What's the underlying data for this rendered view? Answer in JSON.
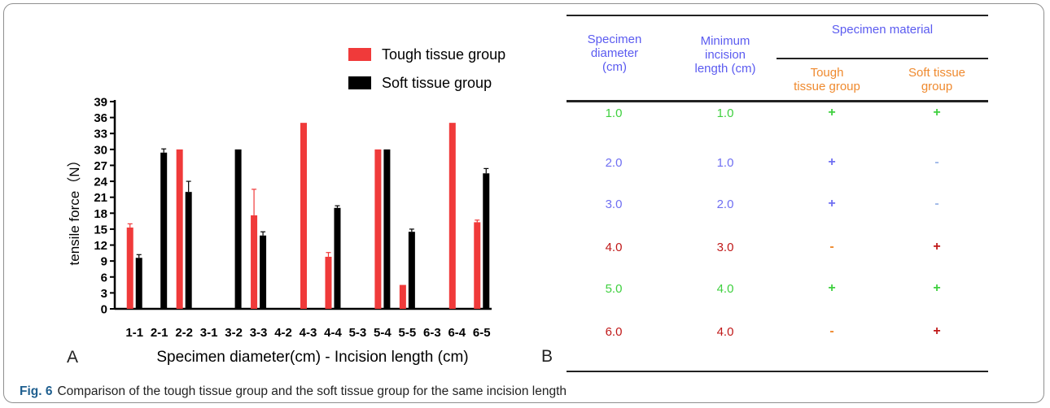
{
  "chart_data": {
    "type": "bar",
    "panel_label": "A",
    "xlabel": "Specimen diameter(cm) - Incision length (cm)",
    "ylabel": "tensile force（N）",
    "ylim": [
      0,
      39
    ],
    "yticks": [
      "0",
      "3",
      "6",
      "9",
      "12",
      "15",
      "18",
      "21",
      "24",
      "27",
      "30",
      "33",
      "36",
      "39"
    ],
    "categories": [
      "1-1",
      "2-1",
      "2-2",
      "3-1",
      "3-2",
      "3-3",
      "4-2",
      "4-3",
      "4-4",
      "5-3",
      "5-4",
      "5-5",
      "6-3",
      "6-4",
      "6-5"
    ],
    "series": [
      {
        "name": "Tough tissue group",
        "color": "#f03a3a",
        "values": [
          15.3,
          0,
          30,
          0,
          0,
          17.6,
          0,
          35,
          9.8,
          0,
          30,
          4.5,
          0,
          35,
          16.3
        ],
        "errors": [
          0.7,
          0,
          0,
          0,
          0,
          4.9,
          0,
          0,
          0.8,
          0,
          0,
          0,
          0,
          0,
          0.4
        ]
      },
      {
        "name": "Soft tissue group",
        "color": "#000000",
        "values": [
          9.6,
          29.4,
          22,
          0,
          30,
          13.8,
          0,
          0,
          19,
          0,
          30,
          14.5,
          0,
          0,
          25.5
        ],
        "errors": [
          0.6,
          0.7,
          2,
          0,
          0,
          0.7,
          0,
          0,
          0.4,
          0,
          0,
          0.5,
          0,
          0,
          0.9
        ]
      }
    ],
    "legend": "top-right"
  },
  "table": {
    "panel_label": "B",
    "headers": {
      "diameter": [
        "Specimen",
        "diameter",
        "(cm)"
      ],
      "incision": [
        "Minimum",
        "incision",
        "length  (cm)"
      ],
      "material": "Specimen material",
      "tough": [
        "Tough",
        "tissue group"
      ],
      "soft": [
        "Soft tissue",
        "group"
      ]
    },
    "rows": [
      {
        "diameter": "1.0",
        "incision": "1.0",
        "tough": "+",
        "soft": "+",
        "color": "#3fd03f"
      },
      {
        "diameter": "2.0",
        "incision": "1.0",
        "tough": "+",
        "soft": "-",
        "color": "#6f6ff2"
      },
      {
        "diameter": "3.0",
        "incision": "2.0",
        "tough": "+",
        "soft": "-",
        "color": "#6f6ff2"
      },
      {
        "diameter": "4.0",
        "incision": "3.0",
        "tough": "-",
        "soft": "+",
        "color": "#c01818"
      },
      {
        "diameter": "5.0",
        "incision": "4.0",
        "tough": "+",
        "soft": "+",
        "color": "#3fd03f"
      },
      {
        "diameter": "6.0",
        "incision": "4.0",
        "tough": "-",
        "soft": "+",
        "color": "#c01818"
      }
    ]
  },
  "caption": {
    "label": "Fig. 6",
    "text": "Comparison of the tough tissue group and the soft tissue group for the same incision length"
  },
  "colors": {
    "header_blue": "#5b5bf0",
    "header_orange": "#ef8a2f",
    "caption_label": "#1f5f8f",
    "frame": "#8f8f8f"
  }
}
